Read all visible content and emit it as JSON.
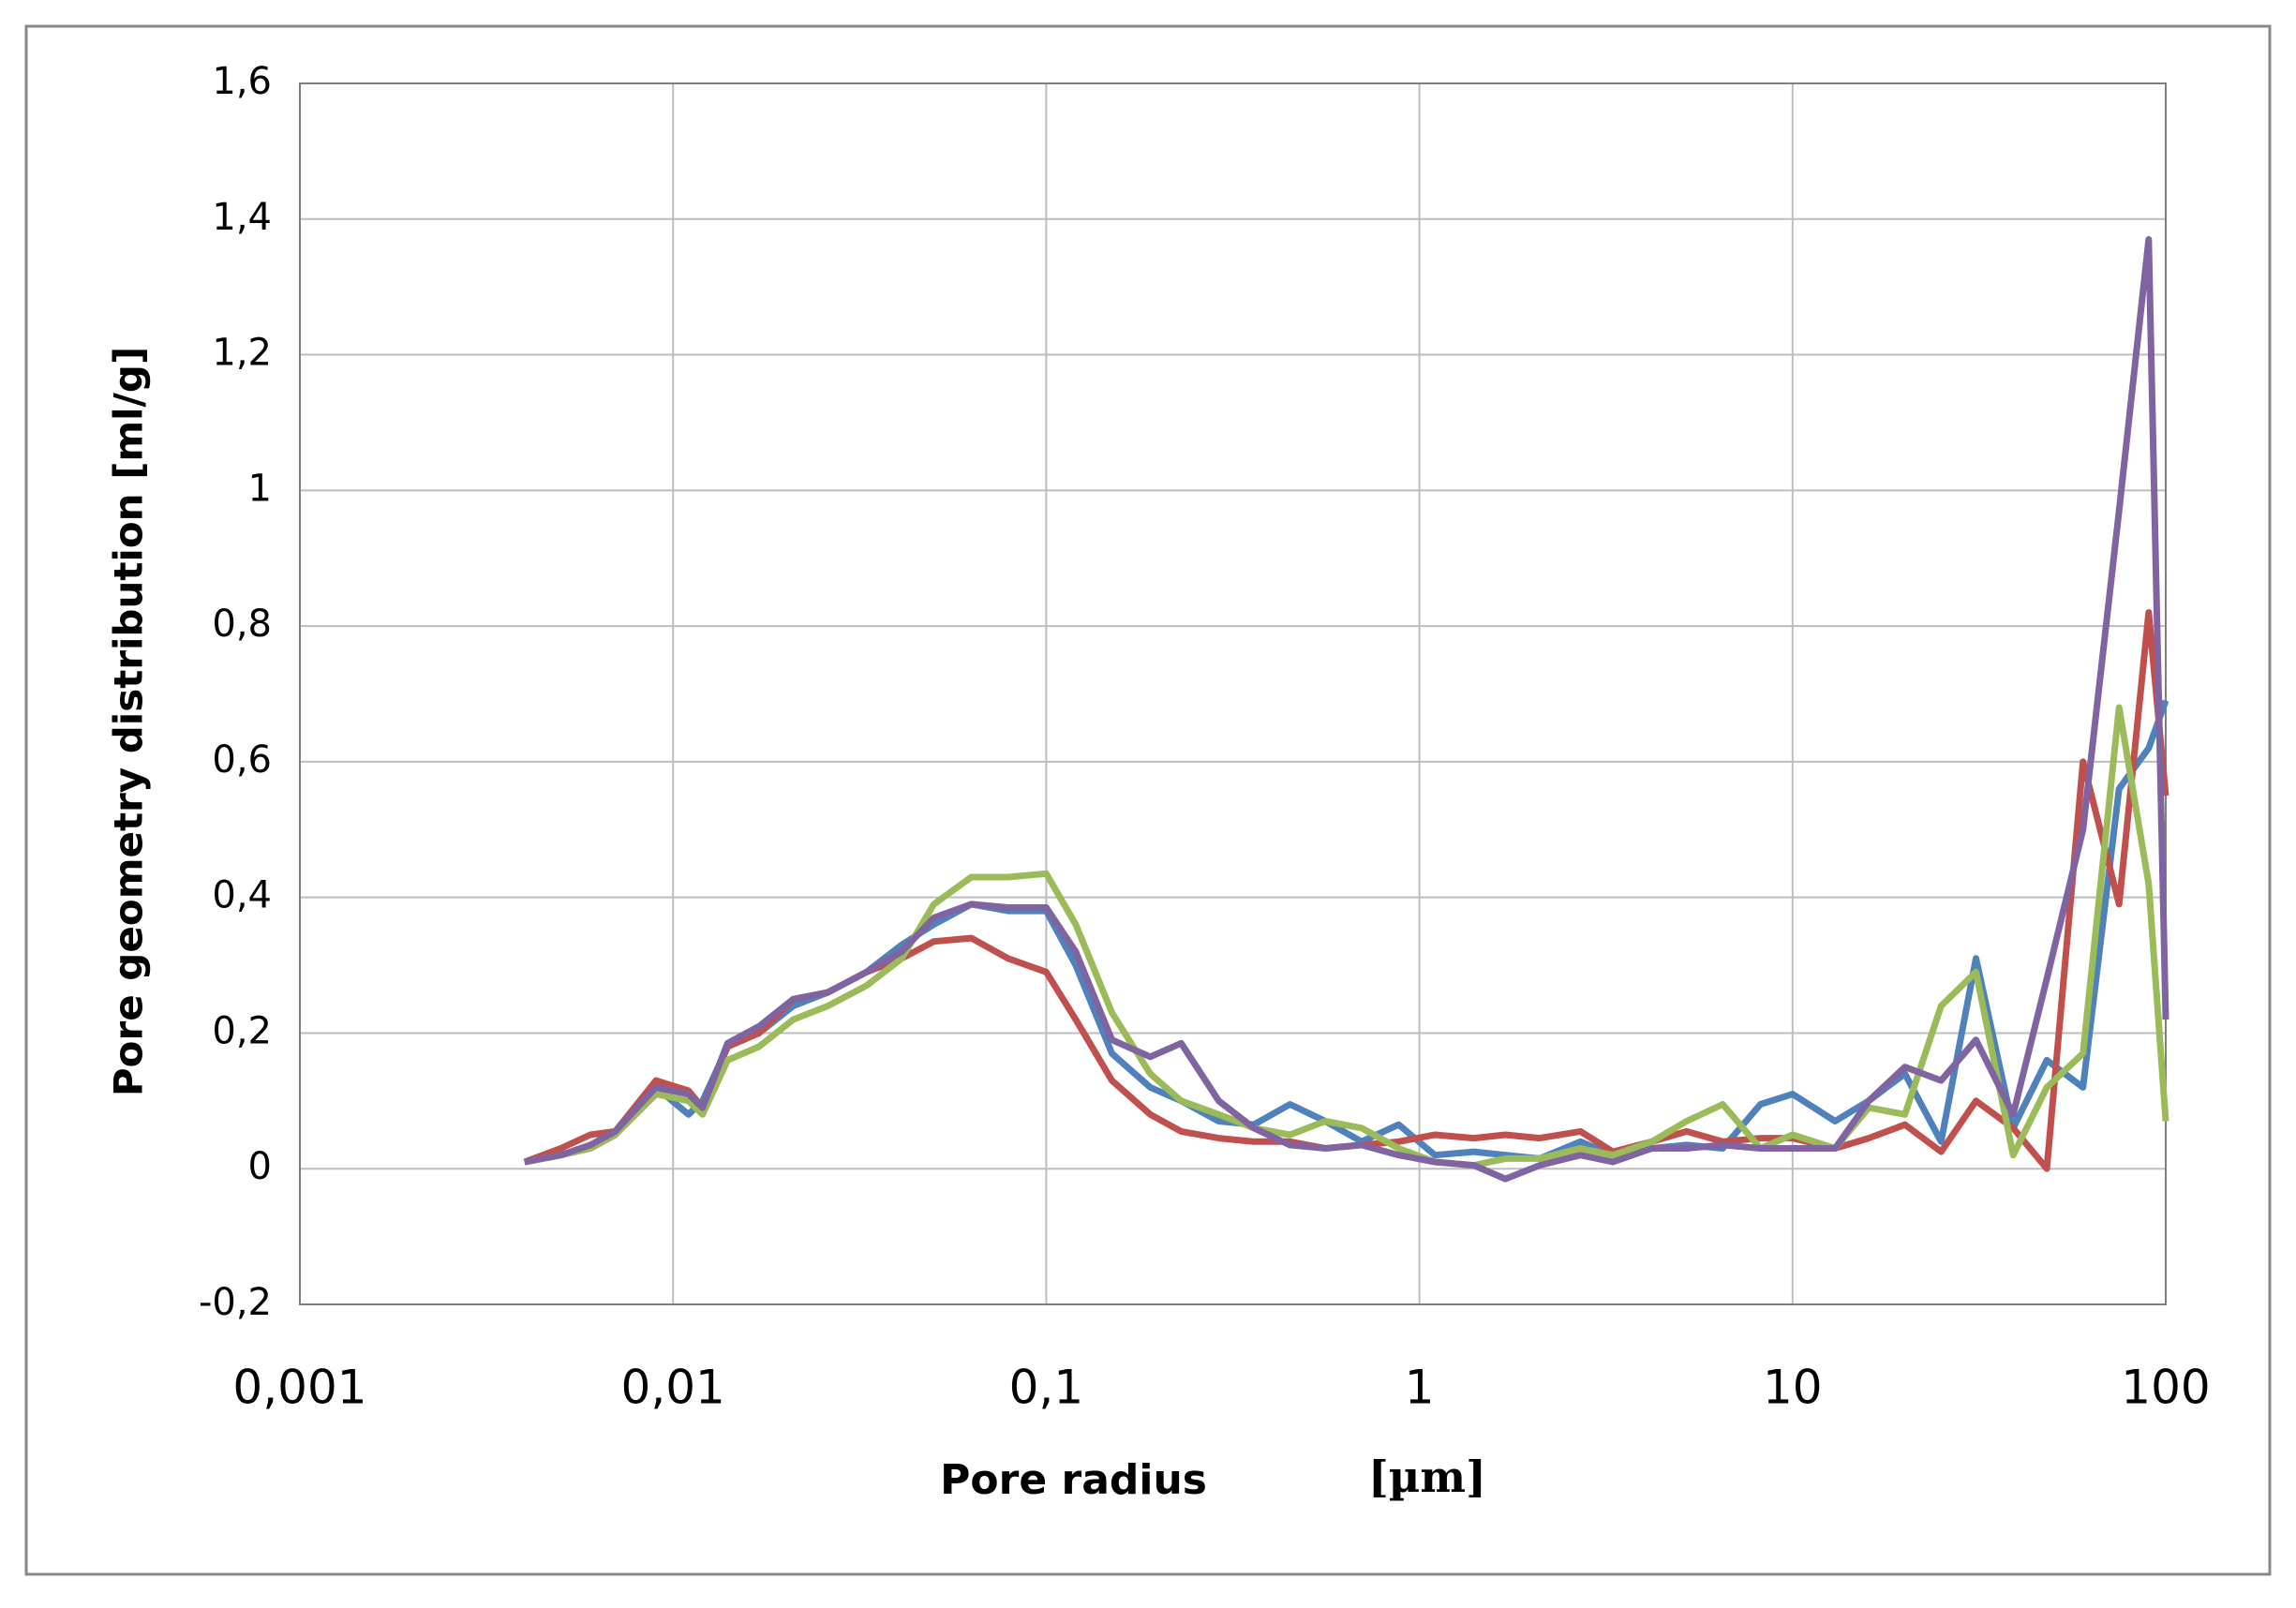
{
  "chart_data": {
    "type": "line",
    "y_label": "Pore geometry distribution [ml/g]",
    "x_label": "Pore radius",
    "x_unit": "[µm]",
    "x_log": true,
    "grid": true,
    "xlim": [
      0.001,
      100
    ],
    "xticks": [
      {
        "value": 0.001,
        "label": "0,001"
      },
      {
        "value": 0.01,
        "label": "0,01"
      },
      {
        "value": 0.1,
        "label": "0,1"
      },
      1,
      10,
      100
    ],
    "ylim": [
      -0.2,
      1.6
    ],
    "yticks": [
      {
        "value": -0.2,
        "label": "-0,2"
      },
      0,
      {
        "value": 0.2,
        "label": "0,2"
      },
      {
        "value": 0.4,
        "label": "0,4"
      },
      {
        "value": 0.6,
        "label": "0,6"
      },
      {
        "value": 0.8,
        "label": "0,8"
      },
      1,
      {
        "value": 1.2,
        "label": "1,2"
      },
      {
        "value": 1.4,
        "label": "1,4"
      },
      {
        "value": 1.6,
        "label": "1,6"
      }
    ],
    "x": [
      0.004,
      0.005,
      0.006,
      0.007,
      0.009,
      0.011,
      0.012,
      0.014,
      0.017,
      0.021,
      0.026,
      0.033,
      0.041,
      0.05,
      0.063,
      0.079,
      0.1,
      0.12,
      0.15,
      0.19,
      0.23,
      0.29,
      0.36,
      0.45,
      0.56,
      0.7,
      0.88,
      1.1,
      1.4,
      1.7,
      2.1,
      2.7,
      3.3,
      4.2,
      5.2,
      6.5,
      8.2,
      10,
      13,
      16,
      20,
      25,
      31,
      39,
      48,
      60,
      75,
      90,
      100
    ],
    "series": [
      {
        "color": "#4f81bd",
        "values": [
          0.01,
          0.02,
          0.03,
          0.05,
          0.12,
          0.08,
          0.1,
          0.18,
          0.2,
          0.24,
          0.26,
          0.29,
          0.33,
          0.36,
          0.39,
          0.38,
          0.38,
          0.3,
          0.17,
          0.12,
          0.1,
          0.07,
          0.065,
          0.095,
          0.07,
          0.04,
          0.065,
          0.02,
          0.025,
          0.02,
          0.015,
          0.04,
          0.02,
          0.03,
          0.035,
          0.03,
          0.095,
          0.11,
          0.07,
          0.1,
          0.14,
          0.04,
          0.31,
          0.06,
          0.16,
          0.12,
          0.56,
          0.62,
          0.69
        ]
      },
      {
        "color": "#c0504d",
        "values": [
          0.01,
          0.03,
          0.05,
          0.055,
          0.13,
          0.115,
          0.09,
          0.18,
          0.2,
          0.25,
          0.26,
          0.29,
          0.31,
          0.335,
          0.34,
          0.31,
          0.29,
          0.22,
          0.13,
          0.08,
          0.055,
          0.045,
          0.04,
          0.04,
          0.03,
          0.035,
          0.04,
          0.05,
          0.045,
          0.05,
          0.045,
          0.055,
          0.025,
          0.04,
          0.055,
          0.04,
          0.045,
          0.045,
          0.03,
          0.045,
          0.065,
          0.025,
          0.1,
          0.06,
          0.0,
          0.6,
          0.39,
          0.82,
          0.55
        ]
      },
      {
        "color": "#9bbb59",
        "values": [
          0.01,
          0.02,
          0.03,
          0.05,
          0.11,
          0.1,
          0.08,
          0.16,
          0.18,
          0.22,
          0.24,
          0.27,
          0.31,
          0.39,
          0.43,
          0.43,
          0.435,
          0.36,
          0.23,
          0.14,
          0.1,
          0.08,
          0.06,
          0.05,
          0.07,
          0.06,
          0.03,
          0.01,
          0.005,
          0.015,
          0.015,
          0.03,
          0.02,
          0.04,
          0.07,
          0.095,
          0.03,
          0.05,
          0.03,
          0.09,
          0.08,
          0.24,
          0.29,
          0.02,
          0.12,
          0.17,
          0.68,
          0.42,
          0.07
        ]
      },
      {
        "color": "#8064a2",
        "values": [
          0.01,
          0.02,
          0.035,
          0.055,
          0.12,
          0.11,
          0.09,
          0.185,
          0.21,
          0.25,
          0.26,
          0.29,
          0.32,
          0.37,
          0.39,
          0.385,
          0.385,
          0.32,
          0.19,
          0.165,
          0.185,
          0.1,
          0.06,
          0.035,
          0.03,
          0.035,
          0.02,
          0.01,
          0.005,
          -0.015,
          0.005,
          0.02,
          0.01,
          0.03,
          0.03,
          0.035,
          0.03,
          0.03,
          0.03,
          0.1,
          0.15,
          0.13,
          0.19,
          0.08,
          0.28,
          0.5,
          0.97,
          1.37,
          0.22
        ]
      }
    ]
  }
}
